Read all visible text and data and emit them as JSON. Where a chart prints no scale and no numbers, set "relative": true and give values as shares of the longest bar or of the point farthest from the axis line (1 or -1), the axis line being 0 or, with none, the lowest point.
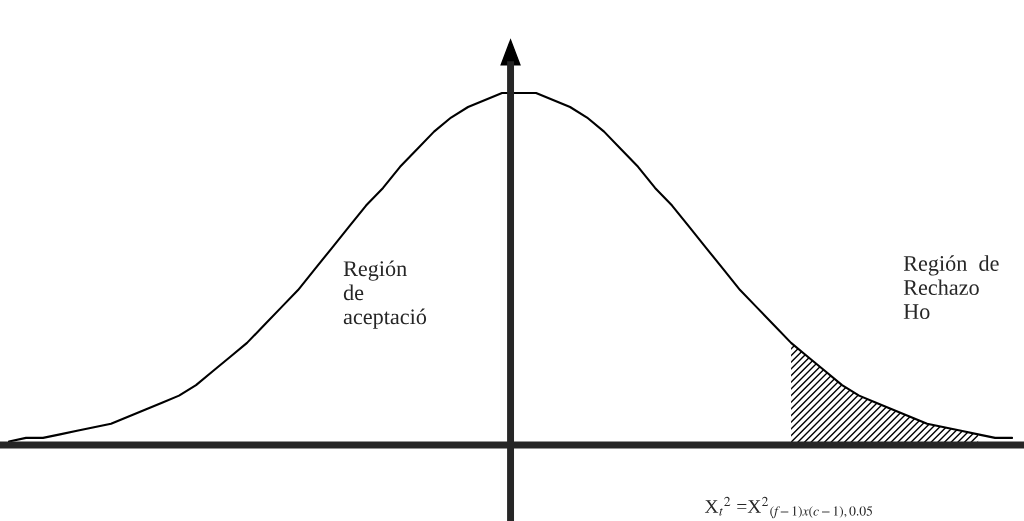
{
  "chart_data": {
    "type": "line",
    "relative": true,
    "legend": false,
    "marker": "none",
    "line_style": "solid",
    "categories": [
      null,
      null,
      null,
      null,
      null,
      null,
      null,
      null,
      null,
      null,
      null,
      null,
      null,
      null,
      null,
      null,
      null,
      null,
      null,
      null,
      null,
      null,
      null,
      null,
      null,
      null,
      null,
      null,
      null,
      null,
      null,
      null,
      null,
      null,
      null,
      null,
      null,
      null,
      null,
      null,
      null,
      null,
      null,
      null,
      null,
      null,
      null,
      null,
      null,
      null,
      null,
      null,
      null,
      null,
      null,
      null,
      null,
      null,
      null,
      null
    ],
    "series": [
      {
        "color": "#000000",
        "values": [
          0.01,
          0.02,
          0.02,
          0.03,
          0.04,
          0.05,
          0.06,
          0.08,
          0.1,
          0.12,
          0.14,
          0.17,
          0.21,
          0.25,
          0.29,
          0.34,
          0.39,
          0.44,
          0.5,
          0.56,
          0.62,
          0.68,
          0.73,
          0.79,
          0.84,
          0.89,
          0.93,
          0.96,
          0.98,
          1.0,
          1.0,
          1.0,
          0.98,
          0.96,
          0.93,
          0.89,
          0.84,
          0.79,
          0.73,
          0.68,
          0.62,
          0.56,
          0.5,
          0.44,
          0.39,
          0.34,
          0.29,
          0.25,
          0.21,
          0.17,
          0.14,
          0.12,
          0.1,
          0.08,
          0.06,
          0.05,
          0.04,
          0.03,
          0.02,
          0.02
        ]
      },
      {
        "type": "area",
        "color": "#000000",
        "values": [
          null,
          null,
          null,
          null,
          null,
          null,
          null,
          null,
          null,
          null,
          null,
          null,
          null,
          null,
          null,
          null,
          null,
          null,
          null,
          null,
          null,
          null,
          null,
          null,
          null,
          null,
          null,
          null,
          null,
          null,
          null,
          null,
          null,
          null,
          null,
          null,
          null,
          null,
          null,
          null,
          null,
          null,
          null,
          null,
          null,
          null,
          0.29,
          0.25,
          0.21,
          0.17,
          0.14,
          0.12,
          0.1,
          0.08,
          0.06,
          0.05,
          0.04,
          0.03,
          null,
          null
        ]
      }
    ],
    "annotations": [
      "Región\nde\naceptació",
      "Región  de\nRechazo\nHo",
      "X$_{t}$$^{2}$ =X$^{2}$$_{(f−1)x(c−1),0.05}$"
    ]
  }
}
